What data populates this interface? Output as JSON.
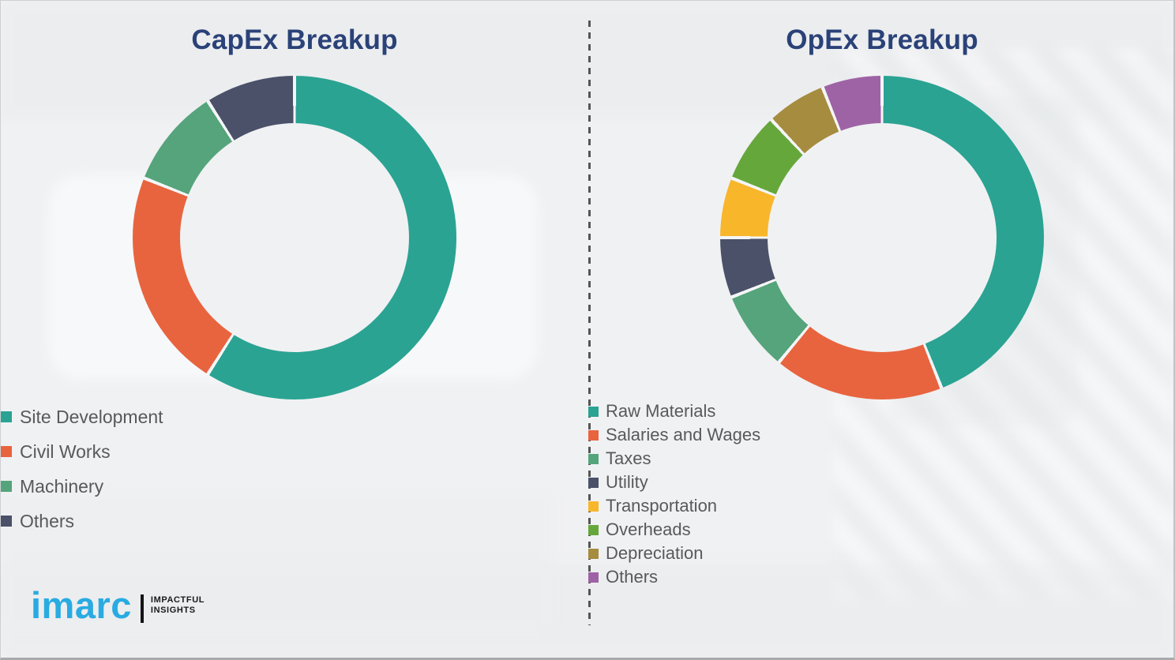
{
  "page": {
    "background_color": "#f0f1f3",
    "divider_color": "#555555",
    "frame_border_color": "#a8aaac",
    "segment_gap_color": "#f4f5f6",
    "title_color": "#2A4278",
    "legend_text_color": "#595959"
  },
  "logo": {
    "brand": "imarc",
    "brand_color": "#29ABE2",
    "tagline_line1": "IMPACTFUL",
    "tagline_line2": "INSIGHTS"
  },
  "chart_data": [
    {
      "type": "pie",
      "subtype": "donut",
      "title": "CapEx Breakup",
      "units": "percent",
      "start_angle_deg": 0,
      "direction": "clockwise",
      "legend_position": "bottom-left",
      "segments": [
        {
          "label": "Site Development",
          "value": 59,
          "color": "#2AA392"
        },
        {
          "label": "Civil Works",
          "value": 22,
          "color": "#E8643F"
        },
        {
          "label": "Machinery",
          "value": 10,
          "color": "#55A47B"
        },
        {
          "label": "Others",
          "value": 9,
          "color": "#4A5169"
        }
      ]
    },
    {
      "type": "pie",
      "subtype": "donut",
      "title": "OpEx Breakup",
      "units": "percent",
      "start_angle_deg": 0,
      "direction": "clockwise",
      "legend_position": "bottom-left",
      "segments": [
        {
          "label": "Raw Materials",
          "value": 44,
          "color": "#2AA392"
        },
        {
          "label": "Salaries and Wages",
          "value": 17,
          "color": "#E8643F"
        },
        {
          "label": "Taxes",
          "value": 8,
          "color": "#55A47B"
        },
        {
          "label": "Utility",
          "value": 6,
          "color": "#4A5169"
        },
        {
          "label": "Transportation",
          "value": 6,
          "color": "#F8B62B"
        },
        {
          "label": "Overheads",
          "value": 7,
          "color": "#66A73C"
        },
        {
          "label": "Depreciation",
          "value": 6,
          "color": "#A68C3F"
        },
        {
          "label": "Others",
          "value": 6,
          "color": "#9E63A5"
        }
      ]
    }
  ]
}
